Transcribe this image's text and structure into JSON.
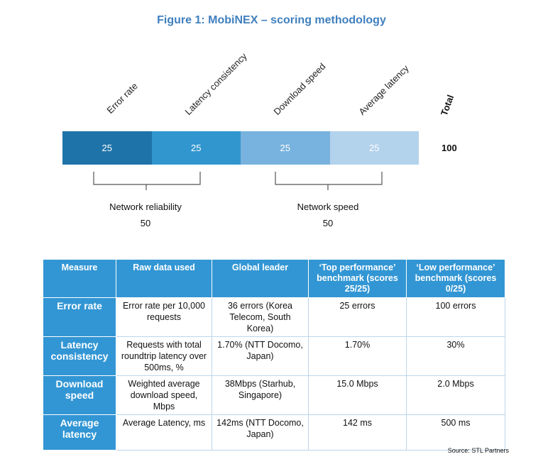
{
  "title": "Figure 1: MobiNEX – scoring methodology",
  "diagram": {
    "column_labels": [
      "Error rate",
      "Latency consistency",
      "Download speed",
      "Average latency"
    ],
    "total_label": "Total",
    "segments": [
      {
        "value": "25",
        "color": "#1e74a8"
      },
      {
        "value": "25",
        "color": "#3196ce"
      },
      {
        "value": "25",
        "color": "#78b2de"
      },
      {
        "value": "25",
        "color": "#b3d2ec"
      }
    ],
    "total_value": "100",
    "groups": [
      {
        "label": "Network reliability",
        "value": "50"
      },
      {
        "label": "Network speed",
        "value": "50"
      }
    ]
  },
  "table": {
    "headers": [
      "Measure",
      "Raw data used",
      "Global leader",
      "‘Top performance’ benchmark (scores 25/25)",
      "‘Low performance’ benchmark (scores 0/25)"
    ],
    "rows": [
      [
        "Error rate",
        "Error rate per 10,000 requests",
        "36 errors (Korea Telecom, South Korea)",
        "25 errors",
        "100 errors"
      ],
      [
        "Latency consistency",
        "Requests with total roundtrip latency over 500ms, %",
        "1.70% (NTT Docomo, Japan)",
        "1.70%",
        "30%"
      ],
      [
        "Download speed",
        "Weighted average download speed, Mbps",
        "38Mbps (Starhub, Singapore)",
        "15.0 Mbps",
        "2.0 Mbps"
      ],
      [
        "Average latency",
        "Average Latency, ms",
        "142ms (NTT Docomo, Japan)",
        "142 ms",
        "500 ms"
      ]
    ]
  },
  "source": "Source: STL Partners"
}
